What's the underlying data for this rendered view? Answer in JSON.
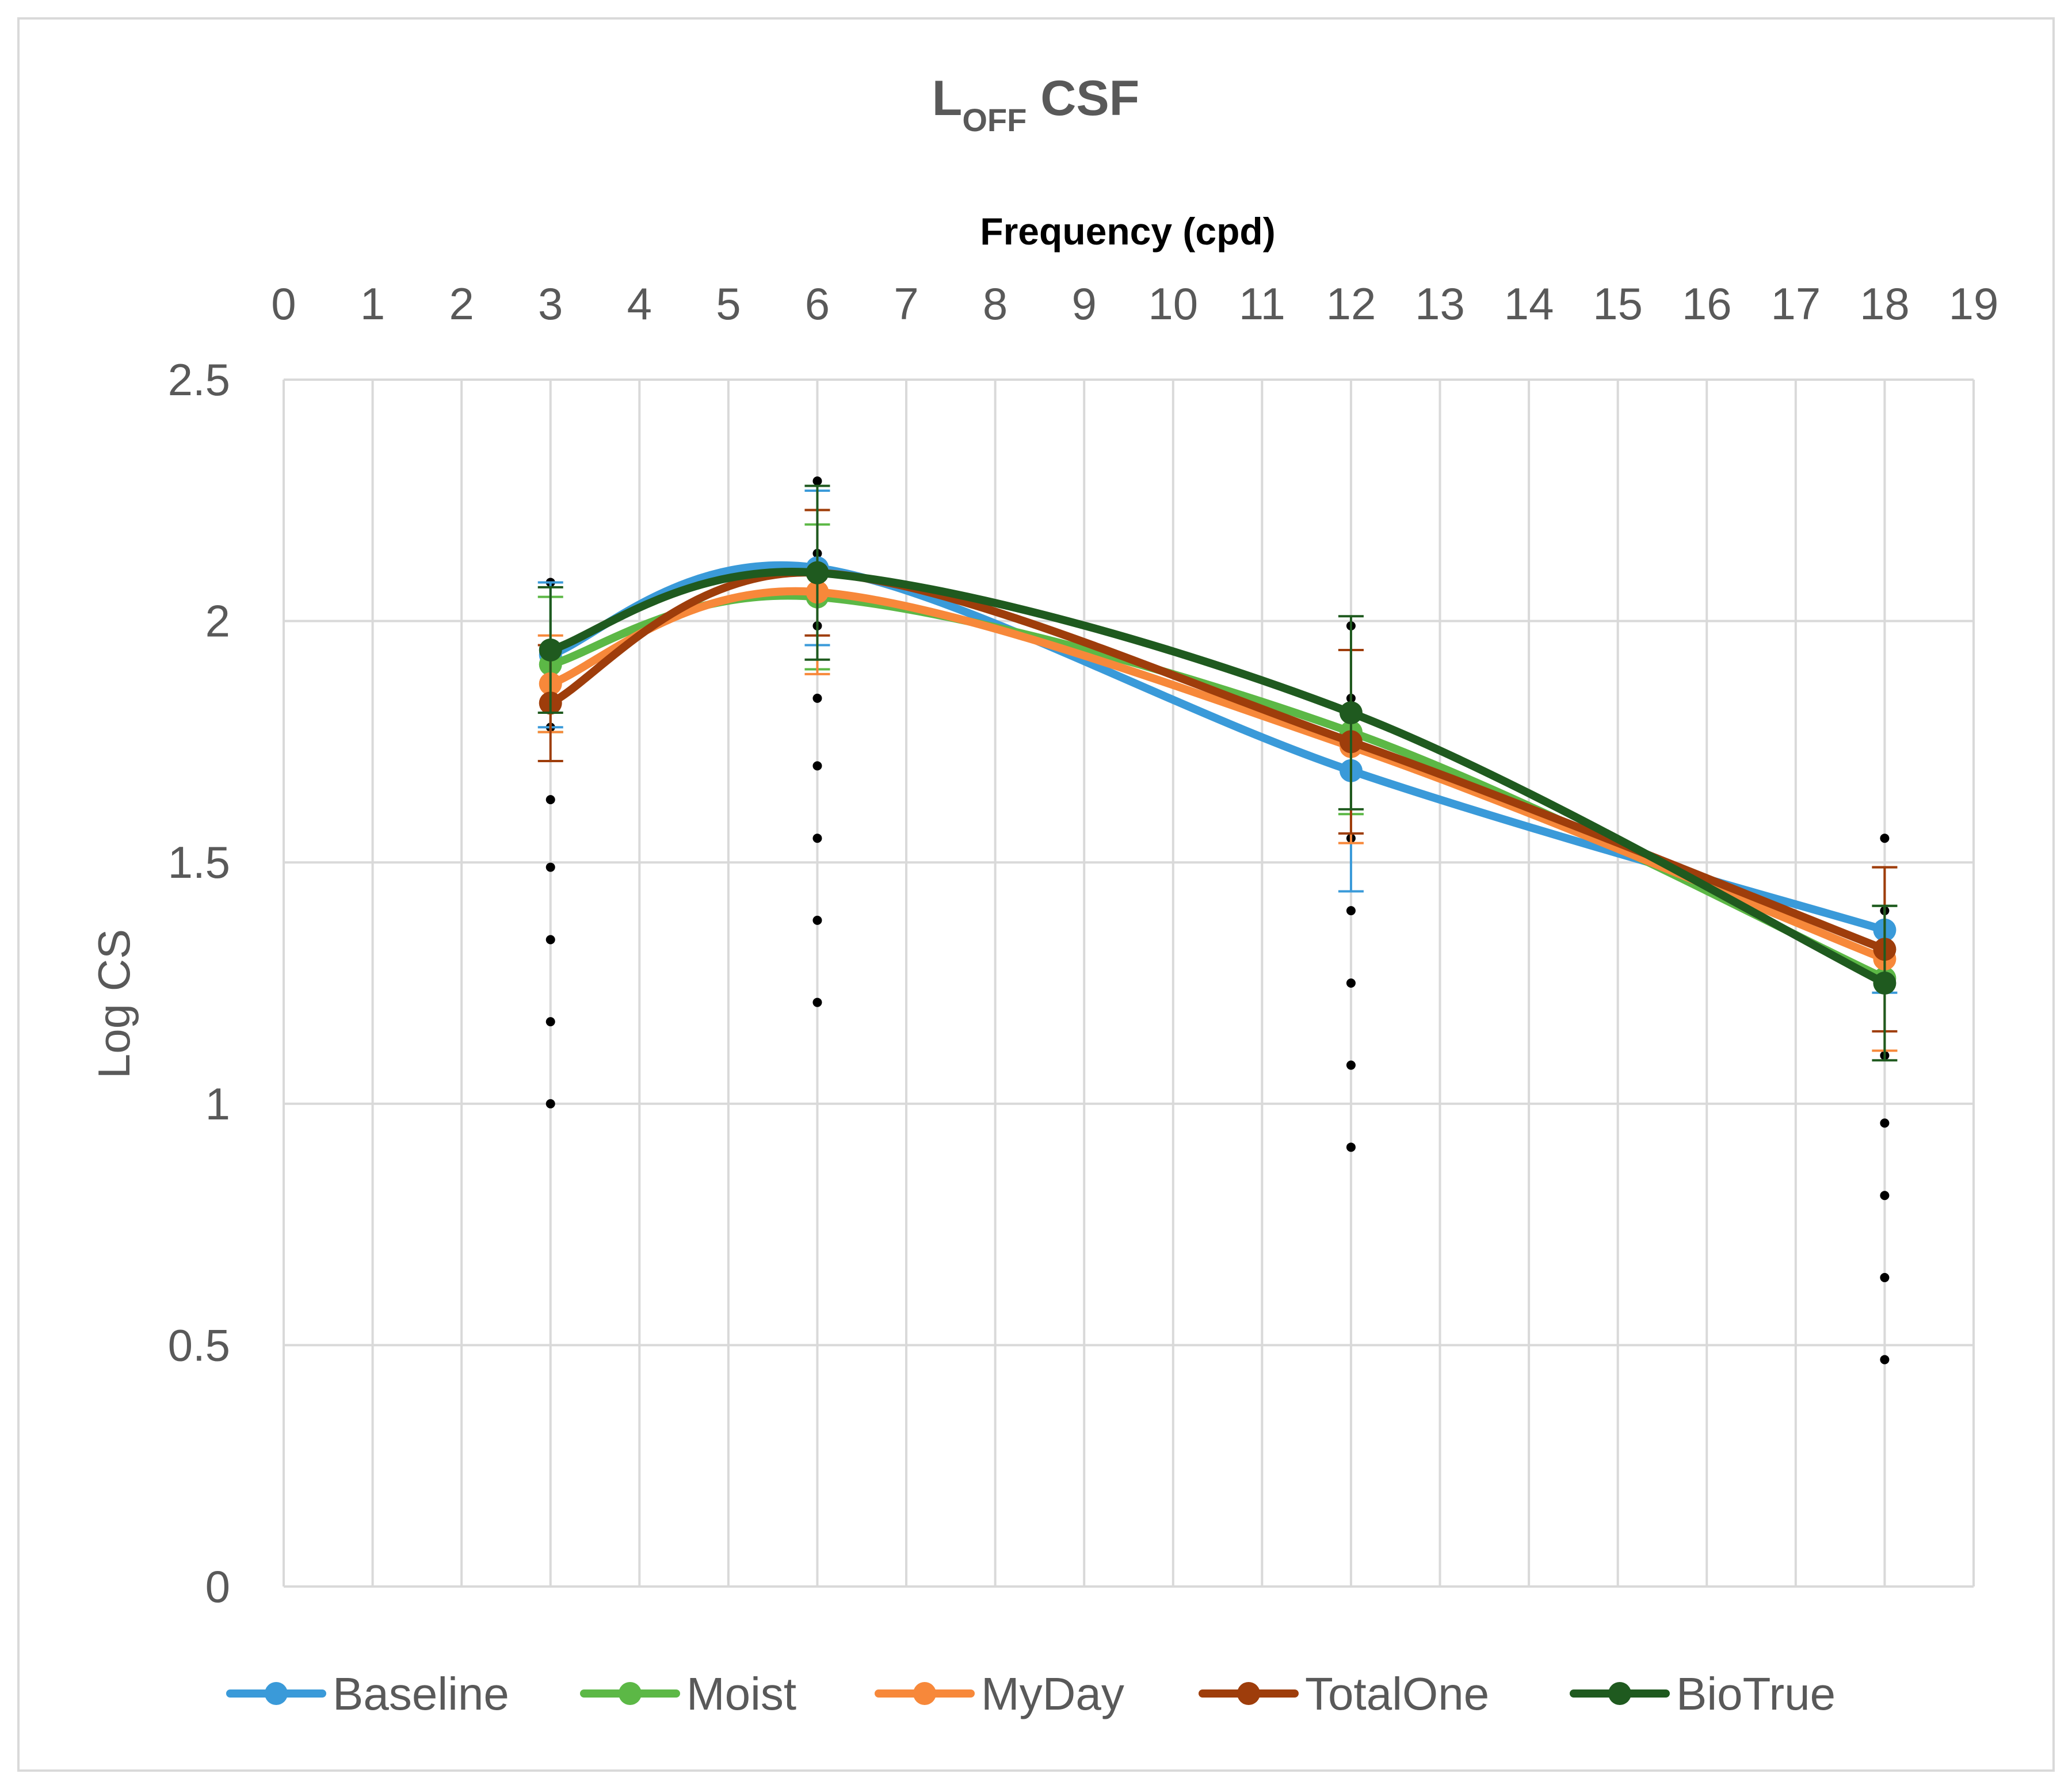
{
  "chart_data": {
    "type": "line",
    "title": "L",
    "title_subscript": "OFF",
    "title_suffix": " CSF",
    "xlabel": "Frequency (cpd)",
    "ylabel": "Log CS",
    "xlim": [
      0,
      19
    ],
    "ylim": [
      0,
      2.5
    ],
    "x_ticks": [
      0,
      1,
      2,
      3,
      4,
      5,
      6,
      7,
      8,
      9,
      10,
      11,
      12,
      13,
      14,
      15,
      16,
      17,
      18,
      19
    ],
    "y_ticks": [
      0,
      0.5,
      1,
      1.5,
      2,
      2.5
    ],
    "y_tick_labels": [
      "0",
      "0.5",
      "1",
      "1.5",
      "2",
      "2.5"
    ],
    "x_axis_position": "top",
    "grid": true,
    "legend_position": "bottom",
    "x": [
      3,
      6,
      12,
      18
    ],
    "series": [
      {
        "name": "Baseline",
        "color": "#3a9ad9",
        "values": [
          1.93,
          2.11,
          1.69,
          1.36
        ],
        "error": [
          0.15,
          0.16,
          0.25,
          0.13
        ]
      },
      {
        "name": "Moist",
        "color": "#5cb846",
        "values": [
          1.91,
          2.05,
          1.77,
          1.26
        ],
        "error": [
          0.14,
          0.15,
          0.17,
          0.15
        ]
      },
      {
        "name": "MyDay",
        "color": "#f7883a",
        "values": [
          1.87,
          2.06,
          1.74,
          1.3
        ],
        "error": [
          0.1,
          0.17,
          0.2,
          0.19
        ]
      },
      {
        "name": "TotalOne",
        "color": "#9e3d0b",
        "values": [
          1.83,
          2.1,
          1.75,
          1.32
        ],
        "error": [
          0.12,
          0.13,
          0.19,
          0.17
        ]
      },
      {
        "name": "BioTrue",
        "color": "#1f5a1f",
        "values": [
          1.94,
          2.1,
          1.81,
          1.25
        ],
        "error": [
          0.13,
          0.18,
          0.2,
          0.16
        ]
      }
    ],
    "dotted_markers": [
      {
        "x": 3,
        "values": [
          2.08,
          1.93,
          1.78,
          1.63,
          1.49,
          1.34,
          1.17,
          1.0
        ]
      },
      {
        "x": 6,
        "values": [
          2.29,
          2.14,
          1.99,
          1.84,
          1.7,
          1.55,
          1.38,
          1.21
        ]
      },
      {
        "x": 12,
        "values": [
          1.99,
          1.84,
          1.55,
          1.4,
          1.25,
          1.08,
          0.91
        ]
      },
      {
        "x": 18,
        "values": [
          1.55,
          1.4,
          1.25,
          1.1,
          0.96,
          0.81,
          0.64,
          0.47
        ]
      }
    ]
  }
}
